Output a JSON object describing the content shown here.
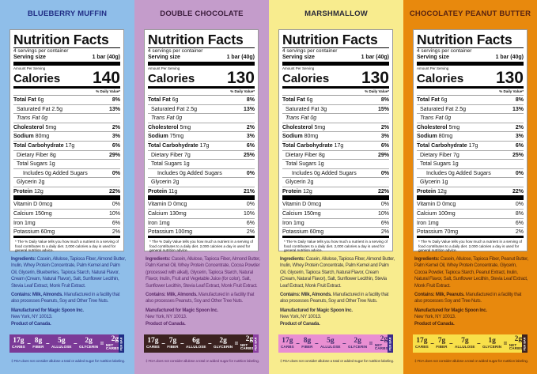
{
  "label_text": {
    "title": "Nutrition Facts",
    "servings": "4 servings per container",
    "serving_size_label": "Serving size",
    "serving_size": "1 bar (40g)",
    "amount_per_serving": "Amount Per Serving",
    "calories_label": "Calories",
    "daily_value_header": "% Daily Value*",
    "footnote": "* The % Daily Value tells you how much a nutrient in a serving of food contributes to a daily diet. 2,000 calories a day is used for general nutrition advice.",
    "ingredients_label": "Ingredients:",
    "contains_label": "Contains:",
    "manufactured": "Manufactured for Magic Spoon Inc.",
    "address": "New York, NY 10013.",
    "origin": "Product of Canada.",
    "per_bar": "PER BAR",
    "net_labels": [
      "CARBS",
      "FIBER",
      "ALLULOSE",
      "GLYCERIN",
      "NET CARBS‡"
    ],
    "ops": [
      "–",
      "–",
      "–",
      "="
    ],
    "fda_note": "‡ FDA does not consider allulose a total or added sugar for nutrition labeling."
  },
  "panels": [
    {
      "flavor": "BLUEBERRY MUFFIN",
      "calories": "140",
      "colors": {
        "bg": "#8fbee9",
        "title": "#1f2c84",
        "text": "#2a3585",
        "bar": "#7b3a97",
        "bar_text": "#fff",
        "tab": "#1f2c84"
      },
      "rows": [
        [
          "Total Fat",
          "6g",
          "8%"
        ],
        [
          "Saturated Fat",
          "2.5g",
          "13%"
        ],
        [
          "Trans",
          "Fat 0g",
          ""
        ],
        [
          "Cholesterol",
          "5mg",
          "2%"
        ],
        [
          "Sodium",
          "80mg",
          "3%"
        ],
        [
          "Total Carbohydrate",
          "17g",
          "6%"
        ],
        [
          "Dietary Fiber",
          "8g",
          "29%"
        ],
        [
          "Total Sugars",
          "1g",
          ""
        ],
        [
          "Includes 0g Added Sugars",
          "",
          "0%"
        ],
        [
          "Glycerin",
          "2g",
          ""
        ],
        [
          "Protein",
          "12g",
          "22%"
        ],
        [
          "Vitamin D",
          "0mcg",
          "0%"
        ],
        [
          "Calcium",
          "150mg",
          "10%"
        ],
        [
          "Iron",
          "1mg",
          "6%"
        ],
        [
          "Potassium",
          "60mg",
          "2%"
        ]
      ],
      "ingredients": "Casein, Allulose, Tapioca Fiber, Almond Butter, Inulin, Whey Protein Concentrate, Palm Kernel and Palm Oil, Glycerin, Blueberries, Tapioca Starch, Natural Flavor, Cream (Cream, Natural Flavor), Salt, Sunflower Lecithin, Stevia Leaf Extract, Monk Fruit Extract.",
      "contains": "Milk, Almonds.",
      "facility": "Manufactured in a facility that also processes Peanuts, Soy and Other Tree Nuts.",
      "net": [
        "17g",
        "8g",
        "5g",
        "2g",
        "2g"
      ]
    },
    {
      "flavor": "DOUBLE CHOCOLATE",
      "calories": "130",
      "colors": {
        "bg": "#c49ccb",
        "title": "#3b1d3c",
        "text": "#5d2b6b",
        "bar": "#3b2220",
        "bar_text": "#fff",
        "tab": "#8a3fa0"
      },
      "rows": [
        [
          "Total Fat",
          "6g",
          "8%"
        ],
        [
          "Saturated Fat",
          "2.5g",
          "13%"
        ],
        [
          "Trans",
          "Fat 0g",
          ""
        ],
        [
          "Cholesterol",
          "5mg",
          "2%"
        ],
        [
          "Sodium",
          "75mg",
          "3%"
        ],
        [
          "Total Carbohydrate",
          "17g",
          "6%"
        ],
        [
          "Dietary Fiber",
          "7g",
          "25%"
        ],
        [
          "Total Sugars",
          "1g",
          ""
        ],
        [
          "Includes 0g Added Sugars",
          "",
          "0%"
        ],
        [
          "Glycerin",
          "2g",
          ""
        ],
        [
          "Protein",
          "11g",
          "21%"
        ],
        [
          "Vitamin D",
          "0mcg",
          "0%"
        ],
        [
          "Calcium",
          "130mg",
          "10%"
        ],
        [
          "Iron",
          "1mg",
          "6%"
        ],
        [
          "Potassium",
          "100mg",
          "2%"
        ]
      ],
      "ingredients": "Casein, Allulose, Tapioca Fiber, Almond Butter, Palm Kernel Oil, Whey Protein Concentrate, Cocoa Powder (processed with alkali), Glycerin, Tapioca Starch, Natural Flavor, Inulin, Fruit and Vegetable Juice (for color), Salt, Sunflower Lecithin, Stevia Leaf Extract, Monk Fruit Extract.",
      "contains": "Milk, Almonds.",
      "facility": "Manufactured in a facility that also processes Peanuts, Soy and Other Tree Nuts.",
      "net": [
        "17g",
        "7g",
        "6g",
        "2g",
        "2g"
      ]
    },
    {
      "flavor": "MARSHMALLOW",
      "calories": "130",
      "colors": {
        "bg": "#f8ec8e",
        "title": "#2a2a38",
        "text": "#3a3540",
        "bar": "#e98fd2",
        "bar_text": "#3b2a6a",
        "tab": "#3b2a8a"
      },
      "rows": [
        [
          "Total Fat",
          "6g",
          "8%"
        ],
        [
          "Saturated Fat",
          "3g",
          "15%"
        ],
        [
          "Trans",
          "Fat 0g",
          ""
        ],
        [
          "Cholesterol",
          "5mg",
          "2%"
        ],
        [
          "Sodium",
          "80mg",
          "3%"
        ],
        [
          "Total Carbohydrate",
          "17g",
          "6%"
        ],
        [
          "Dietary Fiber",
          "8g",
          "29%"
        ],
        [
          "Total Sugars",
          "1g",
          ""
        ],
        [
          "Includes 0g Added Sugars",
          "",
          "0%"
        ],
        [
          "Glycerin",
          "2g",
          ""
        ],
        [
          "Protein",
          "12g",
          "22%"
        ],
        [
          "Vitamin D",
          "0mcg",
          "0%"
        ],
        [
          "Calcium",
          "150mg",
          "10%"
        ],
        [
          "Iron",
          "1mg",
          "6%"
        ],
        [
          "Potassium",
          "60mg",
          "2%"
        ]
      ],
      "ingredients": "Casein, Allulose, Tapioca Fiber, Almond Butter, Inulin, Whey Protein Concentrate, Palm Kernel and Palm Oil, Glycerin, Tapioca Starch, Natural Flavor, Cream (Cream, Natural Flavor), Salt, Sunflower Lecithin, Stevia Leaf Extract, Monk Fruit Extract.",
      "contains": "Milk, Almonds.",
      "facility": "Manufactured in a facility that also processes Peanuts, Soy and Other Tree Nuts.",
      "net": [
        "17g",
        "8g",
        "5g",
        "2g",
        "2g"
      ]
    },
    {
      "flavor": "CHOCOLATEY PEANUT BUTTER",
      "calories": "130",
      "colors": {
        "bg": "#e8890d",
        "title": "#5a2410",
        "text": "#4a2410",
        "bar": "#f8e04a",
        "bar_text": "#3b2a1a",
        "tab": "#3b2220"
      },
      "rows": [
        [
          "Total Fat",
          "6g",
          "8%"
        ],
        [
          "Saturated Fat",
          "2.5g",
          "13%"
        ],
        [
          "Trans",
          "Fat 0g",
          ""
        ],
        [
          "Cholesterol",
          "5mg",
          "2%"
        ],
        [
          "Sodium",
          "80mg",
          "3%"
        ],
        [
          "Total Carbohydrate",
          "17g",
          "6%"
        ],
        [
          "Dietary Fiber",
          "7g",
          "25%"
        ],
        [
          "Total Sugars",
          "1g",
          ""
        ],
        [
          "Includes 0g Added Sugars",
          "",
          "0%"
        ],
        [
          "Glycerin",
          "1g",
          ""
        ],
        [
          "Protein",
          "12g",
          "22%"
        ],
        [
          "Vitamin D",
          "0mcg",
          "0%"
        ],
        [
          "Calcium",
          "100mg",
          "8%"
        ],
        [
          "Iron",
          "1mg",
          "6%"
        ],
        [
          "Potassium",
          "70mg",
          "2%"
        ]
      ],
      "ingredients": "Casein, Allulose, Tapioca Fiber, Peanut Butter, Palm Kernel Oil, Whey Protein Concentrate, Glycerin, Cocoa Powder, Tapioca Starch, Peanut Extract, Inulin, Natural Flavor, Salt, Sunflower Lecithin, Stevia Leaf Extract, Monk Fruit Extract.",
      "contains": "Milk, Peanuts.",
      "facility": "Manufactured in a facility that also processes Soy and Tree Nuts.",
      "net": [
        "17g",
        "7g",
        "7g",
        "1g",
        "2g"
      ]
    }
  ]
}
